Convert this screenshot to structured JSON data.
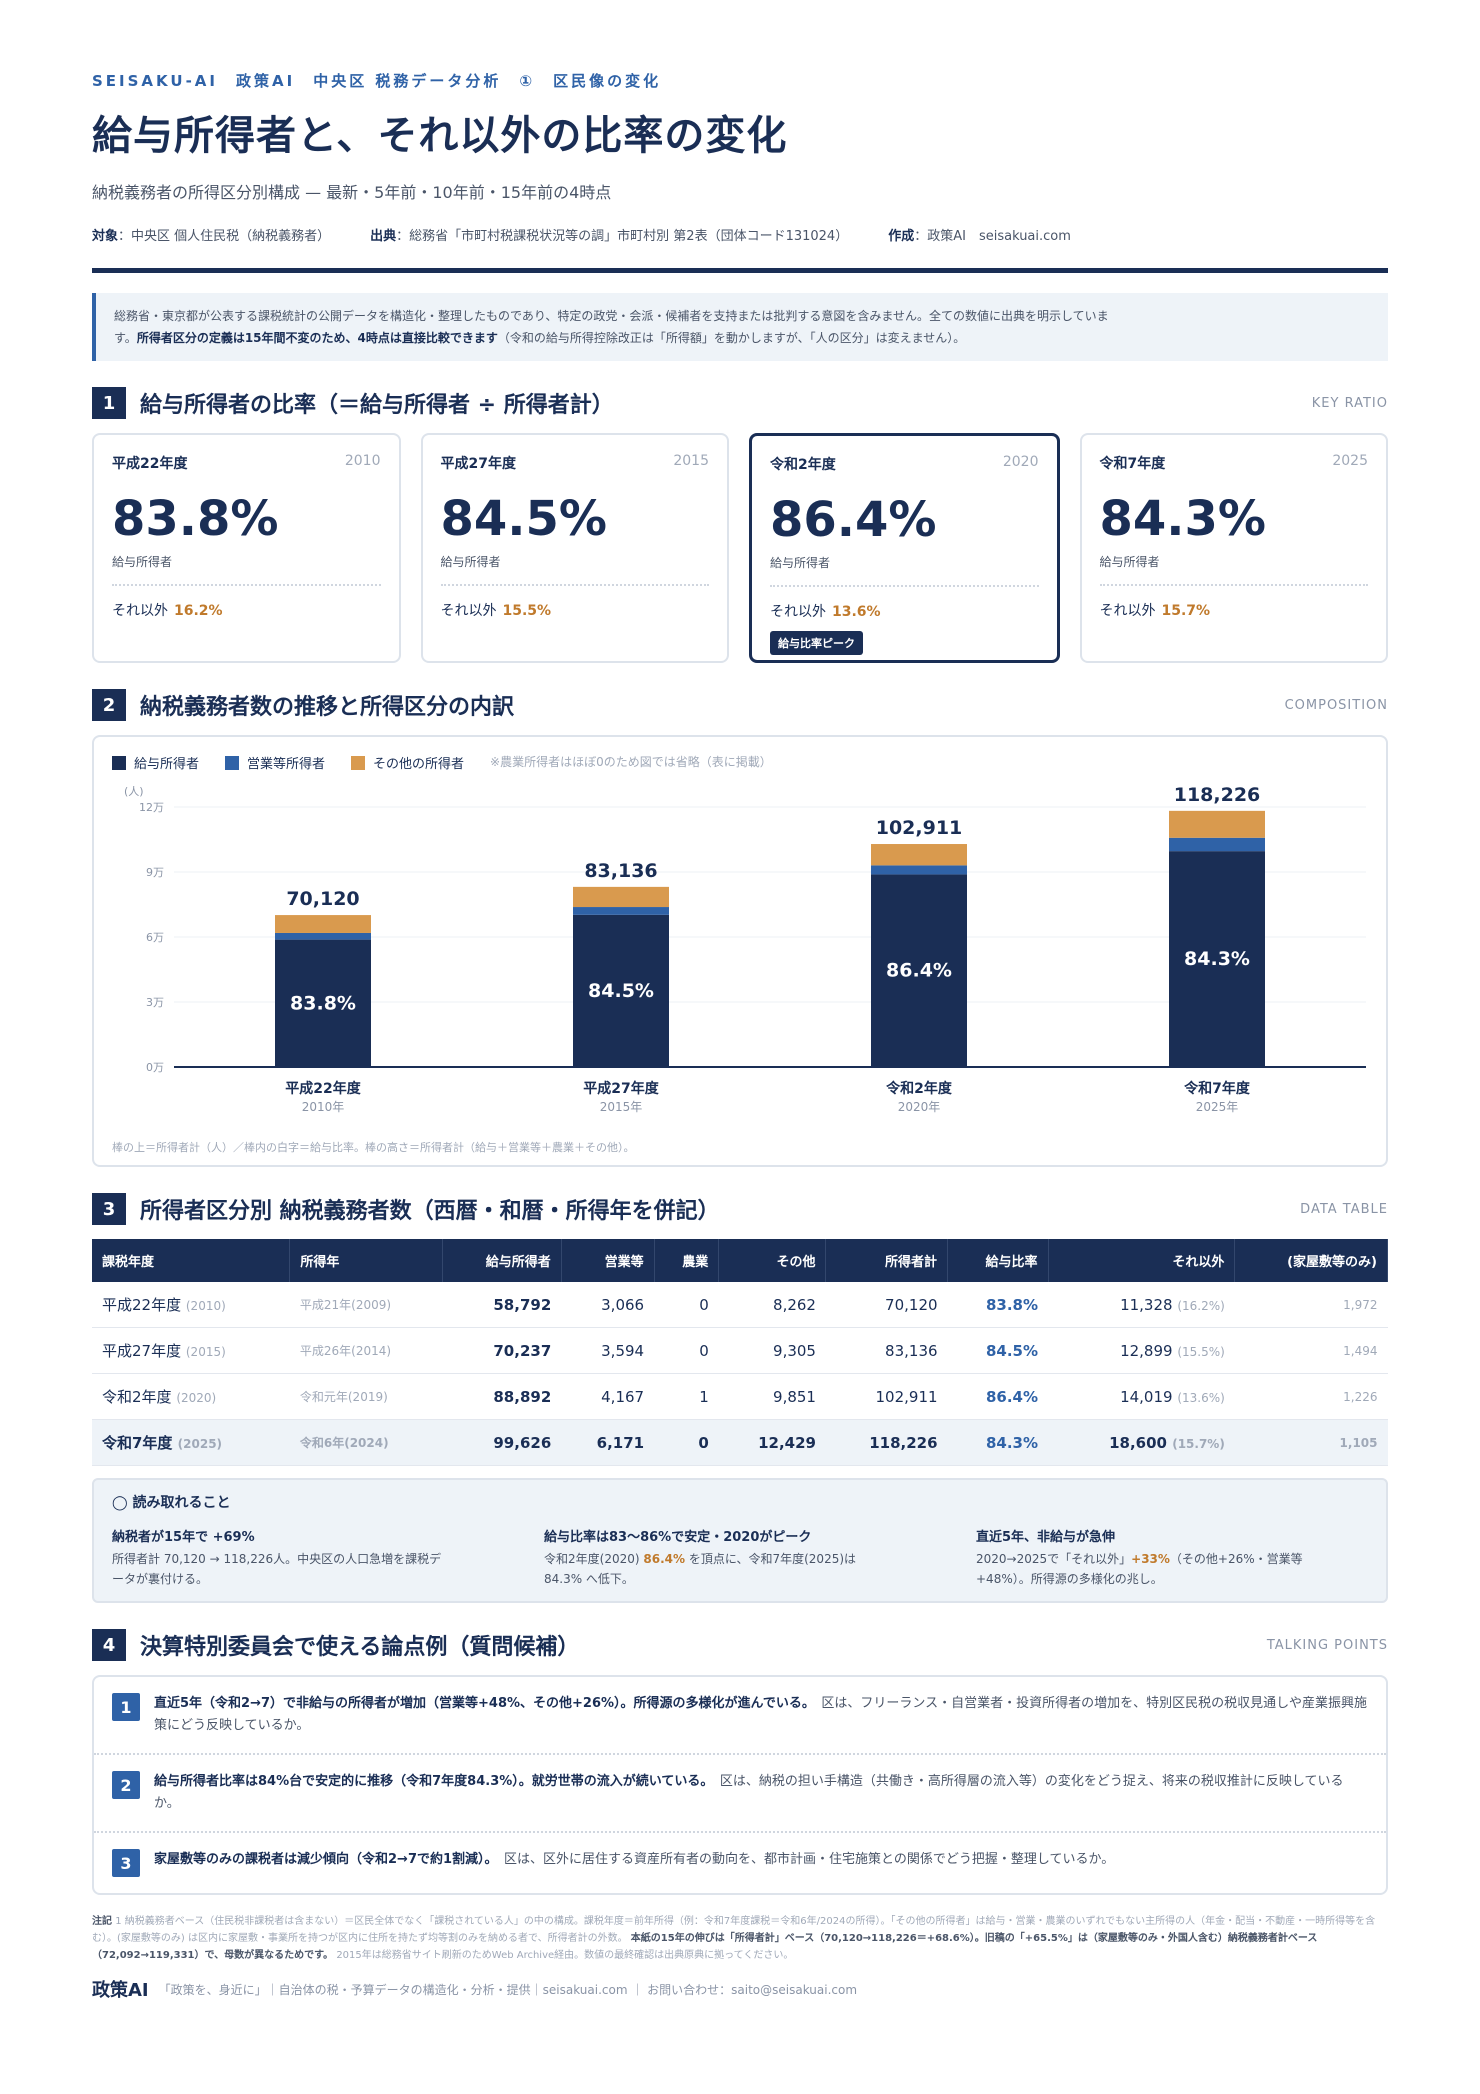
{
  "header": {
    "kicker": "SEISAKU-AI　政策AI　中央区 税務データ分析　①　区民像の変化",
    "title": "給与所得者と、それ以外の比率の変化",
    "subtitle": "納税義務者の所得区分別構成 — 最新・5年前・10年前・15年前の4時点",
    "meta_target_label": "対象",
    "meta_target": "：中央区 個人住民税（納税義務者）",
    "meta_source_label": "出典",
    "meta_source": "：総務省「市町村税課税状況等の調」市町村別 第2表（団体コード131024）",
    "meta_author_label": "作成",
    "meta_author": "：政策AI　seisakuai.com"
  },
  "note": {
    "text1": "総務省・東京都が公表する課税統計の公開データを構造化・整理したものであり、特定の政党・会派・候補者を支持または批判する意図を含みません。全ての数値に出典を明示していま",
    "text2_prefix": "す。",
    "text2_bold": "所得者区分の定義は15年間不変のため、4時点は直接比較できます",
    "text2_suffix": "（令和の給与所得控除改正は「所得額」を動かしますが、「人の区分」は変えません）。"
  },
  "section1": {
    "num": "1",
    "title": "給与所得者の比率（＝給与所得者 ÷ 所得者計）",
    "tag": "KEY RATIO",
    "cards": [
      {
        "era": "平成22年度",
        "year": "2010",
        "pct": "83.8%",
        "label": "給与所得者",
        "other_label": "それ以外",
        "other": "16.2%",
        "badge": ""
      },
      {
        "era": "平成27年度",
        "year": "2015",
        "pct": "84.5%",
        "label": "給与所得者",
        "other_label": "それ以外",
        "other": "15.5%",
        "badge": ""
      },
      {
        "era": "令和2年度",
        "year": "2020",
        "pct": "86.4%",
        "label": "給与所得者",
        "other_label": "それ以外",
        "other": "13.6%",
        "badge": "給与比率ピーク"
      },
      {
        "era": "令和7年度",
        "year": "2025",
        "pct": "84.3%",
        "label": "給与所得者",
        "other_label": "それ以外",
        "other": "15.7%",
        "badge": ""
      }
    ]
  },
  "section2": {
    "num": "2",
    "title": "納税義務者数の推移と所得区分の内訳",
    "tag": "COMPOSITION",
    "legend": [
      {
        "label": "給与所得者",
        "color": "#1a2e55"
      },
      {
        "label": "営業等所得者",
        "color": "#2f62a7"
      },
      {
        "label": "その他の所得者",
        "color": "#d99a4e"
      }
    ],
    "legend_note": "※農業所得者はほぼ0のため図では省略（表に掲載）",
    "foot": "棒の上＝所得者計（人）／棒内の白字＝給与比率。棒の高さ＝所得者計（給与＋営業等＋農業＋その他）。"
  },
  "chart_data": {
    "type": "bar",
    "stacked": true,
    "categories": [
      "平成22年度",
      "平成27年度",
      "令和2年度",
      "令和7年度"
    ],
    "sub_categories": [
      "2010年",
      "2015年",
      "2020年",
      "2025年"
    ],
    "series": [
      {
        "name": "給与所得者",
        "values": [
          58792,
          70237,
          88892,
          99626
        ],
        "color": "#1a2e55"
      },
      {
        "name": "営業等所得者",
        "values": [
          3066,
          3594,
          4167,
          6171
        ],
        "color": "#2f62a7"
      },
      {
        "name": "その他の所得者",
        "values": [
          8262,
          9305,
          9851,
          12429
        ],
        "color": "#d99a4e"
      }
    ],
    "totals": [
      "70,120",
      "83,136",
      "102,911",
      "118,226"
    ],
    "total_values": [
      70120,
      83136,
      102911,
      118226
    ],
    "ratios": [
      "83.8%",
      "84.5%",
      "86.4%",
      "84.3%"
    ],
    "ylabel": "(人)",
    "yticks": [
      "0万",
      "3万",
      "6万",
      "9万",
      "12万"
    ],
    "ytick_values": [
      0,
      30000,
      60000,
      90000,
      120000
    ],
    "ylim": [
      0,
      120000
    ]
  },
  "section3": {
    "num": "3",
    "title": "所得者区分別 納税義務者数（西暦・和暦・所得年を併記）",
    "tag": "DATA TABLE",
    "headers": [
      "課税年度",
      "所得年",
      "給与所得者",
      "営業等",
      "農業",
      "その他",
      "所得者計",
      "給与比率",
      "それ以外",
      "(家屋敷等のみ)"
    ],
    "rows": [
      {
        "fy": "平成22年度",
        "fy_sub": "(2010)",
        "iy": "平成21年(2009)",
        "kyuyo": "58,792",
        "eigyo": "3,066",
        "nogyo": "0",
        "sonota": "8,262",
        "total": "70,120",
        "ratio": "83.8%",
        "other": "11,328",
        "other_sub": "(16.2%)",
        "kaoku": "1,972"
      },
      {
        "fy": "平成27年度",
        "fy_sub": "(2015)",
        "iy": "平成26年(2014)",
        "kyuyo": "70,237",
        "eigyo": "3,594",
        "nogyo": "0",
        "sonota": "9,305",
        "total": "83,136",
        "ratio": "84.5%",
        "other": "12,899",
        "other_sub": "(15.5%)",
        "kaoku": "1,494"
      },
      {
        "fy": "令和2年度",
        "fy_sub": "(2020)",
        "iy": "令和元年(2019)",
        "kyuyo": "88,892",
        "eigyo": "4,167",
        "nogyo": "1",
        "sonota": "9,851",
        "total": "102,911",
        "ratio": "86.4%",
        "other": "14,019",
        "other_sub": "(13.6%)",
        "kaoku": "1,226"
      },
      {
        "fy": "令和7年度",
        "fy_sub": "(2025)",
        "iy": "令和6年(2024)",
        "kyuyo": "99,626",
        "eigyo": "6,171",
        "nogyo": "0",
        "sonota": "12,429",
        "total": "118,226",
        "ratio": "84.3%",
        "other": "18,600",
        "other_sub": "(15.7%)",
        "kaoku": "1,105"
      }
    ]
  },
  "insight": {
    "head": "◯ 読み取れること",
    "cols": [
      {
        "h": "納税者が15年で +69%",
        "p1": "所得者計 70,120 → 118,226人。中央区の人口急増を課税デ",
        "p2": "ータが裏付ける。",
        "hl": ""
      },
      {
        "h": "給与比率は83〜86%で安定・2020がピーク",
        "p1a": "令和2年度(2020)",
        "hl": "86.4%",
        "p1b": "を頂点に、令和7年度(2025)は",
        "p2": "84.3% へ低下。"
      },
      {
        "h": "直近5年、非給与が急伸",
        "p1a": "2020→2025で「それ以外」",
        "hl": "+33%",
        "p1b": "（その他+26%・営業等",
        "p2": "+48%）。所得源の多様化の兆し。"
      }
    ]
  },
  "section4": {
    "num": "4",
    "title": "決算特別委員会で使える論点例（質問候補）",
    "tag": "TALKING POINTS",
    "items": [
      {
        "n": "1",
        "bold": "直近5年（令和2→7）で非給与の所得者が増加（営業等+48%、その他+26%）。所得源の多様化が進んでいる。",
        "text": "区は、フリーランス・自営業者・投資所得者の増加を、特別区民税の税収見通しや産業振興施策にどう反映しているか。"
      },
      {
        "n": "2",
        "bold": "給与所得者比率は84%台で安定的に推移（令和7年度84.3%）。就労世帯の流入が続いている。",
        "text": "区は、納税の担い手構造（共働き・高所得層の流入等）の変化をどう捉え、将来の税収推計に反映しているか。"
      },
      {
        "n": "3",
        "bold": "家屋敷等のみの課税者は減少傾向（令和2→7で約1割減）。",
        "text": "区は、区外に居住する資産所有者の動向を、都市計画・住宅施策との関係でどう把握・整理しているか。"
      }
    ]
  },
  "footnote": {
    "prefix": "注記",
    "text1": "1 納税義務者ベース（住民税非課税者は含まない）＝区民全体でなく「課税されている人」の中の構成。課税年度＝前年所得（例：令和7年度課税＝令和6年/2024の所得）。「その他の所得者」は給与・営業・農業のいずれでもない主所得の人（年金・配当・不動産・一時所得等を含む）。(家屋敷等のみ) は区内に家屋敷・事業所を持つが区内に住所を持たず均等割のみを納める者で、所得者計の外数。",
    "bold1": "本紙の15年の伸びは「所得者計」ベース（70,120→118,226＝+68.6%）。旧稿の「+65.5%」は（家屋敷等のみ・外国人含む）納税義務者計ベース（72,092→119,331）で、母数が異なるためです。",
    "text2": "2015年は総務省サイト刷新のためWeb Archive経由。数値の最終確認は出典原典に拠ってください。"
  },
  "footer": {
    "logo": "政策AI",
    "text": "「政策を、身近に」｜自治体の税・予算データの構造化・分析・提供｜seisakuai.com ｜ お問い合わせ：saito@seisakuai.com"
  }
}
